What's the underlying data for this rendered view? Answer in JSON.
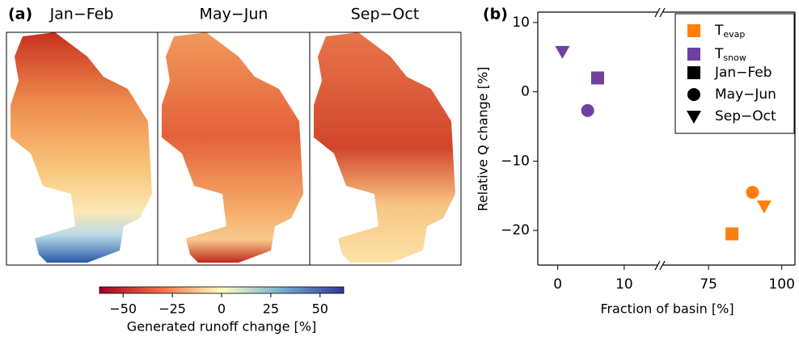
{
  "chart_data": [
    {
      "type": "map",
      "panel_label": "(a)",
      "titles": [
        "Jan−Feb",
        "May−Jun",
        "Sep−Oct"
      ],
      "colorbar": {
        "label": "Generated runoff change [%]",
        "lim": [
          -62,
          62
        ],
        "ticks": [
          {
            "value": -50,
            "label": "−50"
          },
          {
            "value": -25,
            "label": "−25"
          },
          0,
          25,
          50
        ]
      }
    },
    {
      "type": "scatter",
      "panel_label": "(b)",
      "ylabel": "Relative Q change [%]",
      "xlabel": "Fraction of basin [%]",
      "ylim": [
        -25,
        11.5
      ],
      "yticks": [
        10,
        0,
        {
          "value": -10,
          "label": "−10"
        },
        {
          "value": -20,
          "label": "−20"
        }
      ],
      "x_segments": [
        {
          "xlim": [
            -3,
            15
          ],
          "xticks": [
            0,
            10
          ]
        },
        {
          "xlim": [
            59.5,
            104.5
          ],
          "xticks": [
            75,
            100
          ]
        }
      ],
      "markers": [
        {
          "name": "Jan−Feb",
          "shape": "square"
        },
        {
          "name": "May−Jun",
          "shape": "circle"
        },
        {
          "name": "Sep−Oct",
          "shape": "triangle"
        }
      ],
      "series": [
        {
          "name": "T",
          "name_sub": "evap",
          "color": "#ff7f0e",
          "x": [
            83,
            90,
            94
          ],
          "values": [
            -20.5,
            -14.5,
            -16.5
          ]
        },
        {
          "name": "T",
          "name_sub": "snow",
          "color": "#7040a0",
          "x": [
            6,
            4.5,
            0.7
          ],
          "values": [
            2,
            -2.7,
            5.8
          ]
        }
      ]
    }
  ]
}
